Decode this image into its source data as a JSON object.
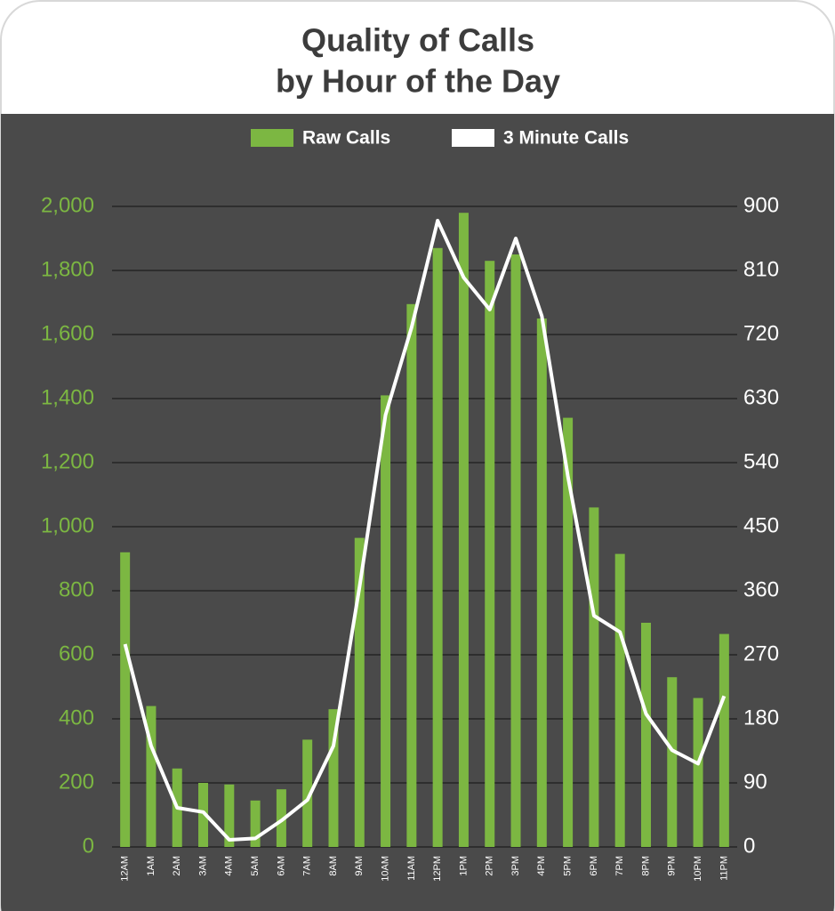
{
  "chart_data": {
    "type": "bar",
    "title": [
      "Quality of Calls",
      "by Hour of the Day"
    ],
    "categories": [
      "12AM",
      "1AM",
      "2AM",
      "3AM",
      "4AM",
      "5AM",
      "6AM",
      "7AM",
      "8AM",
      "9AM",
      "10AM",
      "11AM",
      "12PM",
      "1PM",
      "2PM",
      "3PM",
      "4PM",
      "5PM",
      "6PM",
      "7PM",
      "8PM",
      "9PM",
      "10PM",
      "11PM"
    ],
    "series": [
      {
        "name": "Raw Calls",
        "type": "bar",
        "color": "#7cb742",
        "values": [
          920,
          440,
          245,
          200,
          195,
          145,
          180,
          335,
          430,
          965,
          1410,
          1695,
          1870,
          1980,
          1830,
          1850,
          1650,
          1340,
          1060,
          915,
          700,
          530,
          465,
          665
        ]
      },
      {
        "name": "3 Minute Calls",
        "type": "line",
        "axis": "y2",
        "color": "#ffffff",
        "values": [
          285,
          142,
          55,
          49,
          10,
          12,
          37,
          66,
          142,
          365,
          607,
          730,
          880,
          800,
          755,
          855,
          746,
          521,
          325,
          302,
          187,
          136,
          117,
          212
        ]
      }
    ],
    "ylim": [
      0,
      2000
    ],
    "yticks": [
      0,
      200,
      400,
      600,
      800,
      {
        "value": 1000,
        "label": "1,000"
      },
      {
        "value": 1200,
        "label": "1,200"
      },
      {
        "value": 1400,
        "label": "1,400"
      },
      {
        "value": 1600,
        "label": "1,600"
      },
      {
        "value": 1800,
        "label": "1,800"
      },
      {
        "value": 2000,
        "label": "2,000"
      }
    ],
    "y2lim": [
      0,
      900
    ],
    "y2ticks": [
      0,
      90,
      180,
      270,
      360,
      450,
      540,
      630,
      720,
      810,
      900
    ],
    "grid": true
  }
}
